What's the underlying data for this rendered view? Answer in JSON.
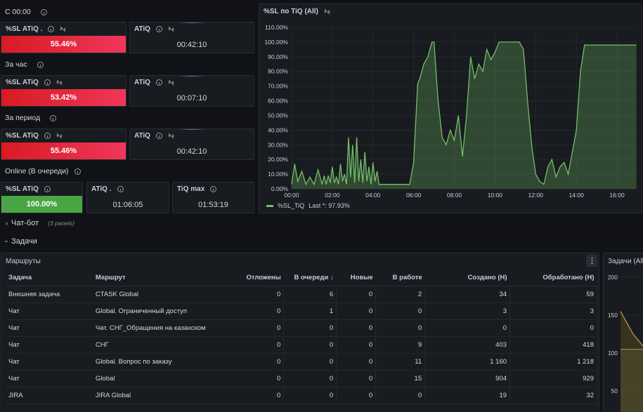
{
  "rows": {
    "since": {
      "title": "С 00:00"
    },
    "hour": {
      "title": "За час"
    },
    "period": {
      "title": "За период"
    },
    "online": {
      "title": "Online (В очереди)"
    }
  },
  "stats": {
    "since": {
      "sl_title": "%SL ATiQ .",
      "sl_value": "55.46%",
      "atiq_title": "ATiQ",
      "atiq_value": "00:42:10"
    },
    "hour": {
      "sl_title": "%SL ATiQ",
      "sl_value": "53.42%",
      "atiq_title": "ATiQ",
      "atiq_value": "00:07:10"
    },
    "period": {
      "sl_title": "%SL ATiQ",
      "sl_value": "55.46%",
      "atiq_title": "ATiQ",
      "atiq_value": "00:42:10"
    },
    "online": {
      "sl_title": "%SL ATiQ",
      "sl_value": "100.00%",
      "atiq_title": "ATiQ .",
      "atiq_value": "01:06:05",
      "tiq_title": "TiQ max",
      "tiq_value": "01:53:19"
    }
  },
  "colors": {
    "red_start": "#d81b23",
    "red_end": "#f0365a",
    "green": "#4aa544",
    "series": "#73bf69"
  },
  "sl_chart": {
    "title": "%SL по TiQ (All)",
    "legend_label": "%SL_TiQ",
    "legend_value": "Last *: 97.93%"
  },
  "chart_data": [
    {
      "type": "area",
      "title": "%SL по TiQ (All)",
      "ylim": [
        0,
        110
      ],
      "yticks": [
        "0.00%",
        "10.00%",
        "20.00%",
        "30.00%",
        "40.00%",
        "50.00%",
        "60.00%",
        "70.00%",
        "80.00%",
        "90.00%",
        "100.00%",
        "110.00%"
      ],
      "xticks": [
        "00:00",
        "02:00",
        "04:00",
        "06:00",
        "08:00",
        "10:00",
        "12:00",
        "14:00",
        "16:00"
      ],
      "series": [
        {
          "name": "%SL_TiQ",
          "x": [
            0,
            0.15,
            0.3,
            0.5,
            0.7,
            0.9,
            1.1,
            1.3,
            1.5,
            1.6,
            1.7,
            1.8,
            1.9,
            2.0,
            2.1,
            2.2,
            2.3,
            2.4,
            2.5,
            2.6,
            2.7,
            2.8,
            2.9,
            3.0,
            3.1,
            3.2,
            3.3,
            3.4,
            3.5,
            3.6,
            3.7,
            3.8,
            3.9,
            4.0,
            4.1,
            4.2,
            4.3,
            4.4,
            4.5,
            4.6,
            4.7,
            4.8,
            4.9,
            5.0,
            5.2,
            5.4,
            5.6,
            5.8,
            6.0,
            6.2,
            6.3,
            6.5,
            6.7,
            6.9,
            7.0,
            7.2,
            7.4,
            7.6,
            7.8,
            8.0,
            8.2,
            8.4,
            8.6,
            8.8,
            9.0,
            9.2,
            9.4,
            9.6,
            9.8,
            10.0,
            10.2,
            10.4,
            10.6,
            10.8,
            11.0,
            11.2,
            11.4,
            11.6,
            11.8,
            12.0,
            12.2,
            12.4,
            12.6,
            12.8,
            13.0,
            13.2,
            13.4,
            13.6,
            13.8,
            14.0,
            14.2,
            14.4,
            14.6,
            14.8,
            15.0,
            15.2,
            15.4,
            15.6,
            15.8,
            16.0,
            16.2,
            16.4,
            16.6,
            16.8,
            16.95
          ],
          "values": [
            3,
            17,
            5,
            12,
            3,
            8,
            3,
            13,
            3,
            9,
            3,
            9,
            4,
            15,
            4,
            8,
            3,
            17,
            5,
            10,
            3,
            35,
            8,
            30,
            4,
            35,
            5,
            20,
            4,
            25,
            5,
            15,
            3,
            18,
            5,
            12,
            3,
            3,
            3,
            3,
            3,
            3,
            3,
            3,
            3,
            3,
            3,
            3,
            18,
            72,
            75,
            85,
            90,
            100,
            100,
            60,
            35,
            30,
            40,
            33,
            50,
            22,
            50,
            90,
            75,
            85,
            80,
            95,
            88,
            93,
            100,
            100,
            100,
            100,
            100,
            100,
            95,
            60,
            30,
            10,
            5,
            3,
            15,
            20,
            8,
            15,
            18,
            10,
            25,
            40,
            80,
            97.93,
            98,
            98,
            98,
            98,
            98,
            98,
            98,
            98,
            98,
            98,
            98,
            98,
            98
          ]
        }
      ]
    },
    {
      "type": "line",
      "title": "Задачи (All)",
      "ylim": [
        0,
        200
      ],
      "yticks": [
        "200",
        "150",
        "100",
        "50"
      ],
      "series": [
        {
          "x": [
            0,
            30,
            60
          ],
          "values": [
            155,
            125,
            105
          ]
        },
        {
          "x": [
            0,
            30,
            60
          ],
          "values": [
            105,
            105,
            105
          ]
        }
      ]
    }
  ],
  "sections": {
    "chatbot": {
      "title": "Чат-бот",
      "subtitle": "(3 panels)"
    },
    "tasks": {
      "title": "Задачи"
    }
  },
  "routes": {
    "title": "Маршруты",
    "columns": [
      "Задача",
      "Маршрут",
      "Отложены",
      "В очереди",
      "Новые",
      "В работе",
      "Создано (H)",
      "Обработано (H)"
    ],
    "sort_arrow": "↓",
    "rows": [
      [
        "Внешняя задача",
        "CTASK Global",
        "0",
        "6",
        "0",
        "2",
        "34",
        "59"
      ],
      [
        "Чат",
        "Global. Ограниченный доступ",
        "0",
        "1",
        "0",
        "0",
        "3",
        "3"
      ],
      [
        "Чат",
        "Чат. СНГ_Обращения на казахском",
        "0",
        "0",
        "0",
        "0",
        "0",
        "0"
      ],
      [
        "Чат",
        "СНГ",
        "0",
        "0",
        "0",
        "9",
        "403",
        "418"
      ],
      [
        "Чат",
        "Global. Вопрос по заказу",
        "0",
        "0",
        "0",
        "11",
        "1 160",
        "1 218"
      ],
      [
        "Чат",
        "Global",
        "0",
        "0",
        "0",
        "15",
        "904",
        "929"
      ],
      [
        "JIRA",
        "JIRA Global",
        "0",
        "0",
        "0",
        "0",
        "19",
        "32"
      ]
    ]
  },
  "tasks_chart": {
    "title": "Задачи (All)",
    "yticks": [
      "200",
      "150",
      "100",
      "50"
    ]
  }
}
